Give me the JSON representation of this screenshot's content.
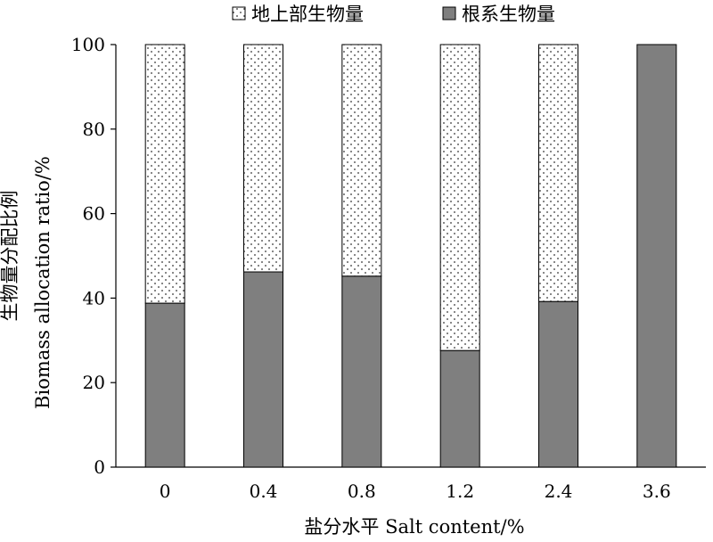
{
  "chart_data": {
    "type": "bar",
    "stacked": true,
    "percent_stacked": true,
    "categories": [
      "0",
      "0.4",
      "0.8",
      "1.2",
      "2.4",
      "3.6"
    ],
    "series": [
      {
        "name": "根系生物量",
        "values": [
          38.8,
          46.2,
          45.2,
          27.6,
          39.2,
          100
        ],
        "color": "#7f7f7f",
        "pattern": "solid"
      },
      {
        "name": "地上部生物量",
        "values": [
          61.2,
          53.8,
          54.8,
          72.4,
          60.8,
          0
        ],
        "color": "#ffffff",
        "pattern": "dots"
      }
    ],
    "ylim": [
      0,
      100
    ],
    "yticks": [
      "0",
      "20",
      "40",
      "60",
      "80",
      "100"
    ],
    "ylabel_cn": "生物量分配比例",
    "ylabel_en": "Biomass allocation ratio/%",
    "xlabel": "盐分水平 Salt content/%",
    "legend": {
      "position": "top",
      "items": [
        "地上部生物量",
        "根系生物量"
      ]
    },
    "grid": false
  }
}
